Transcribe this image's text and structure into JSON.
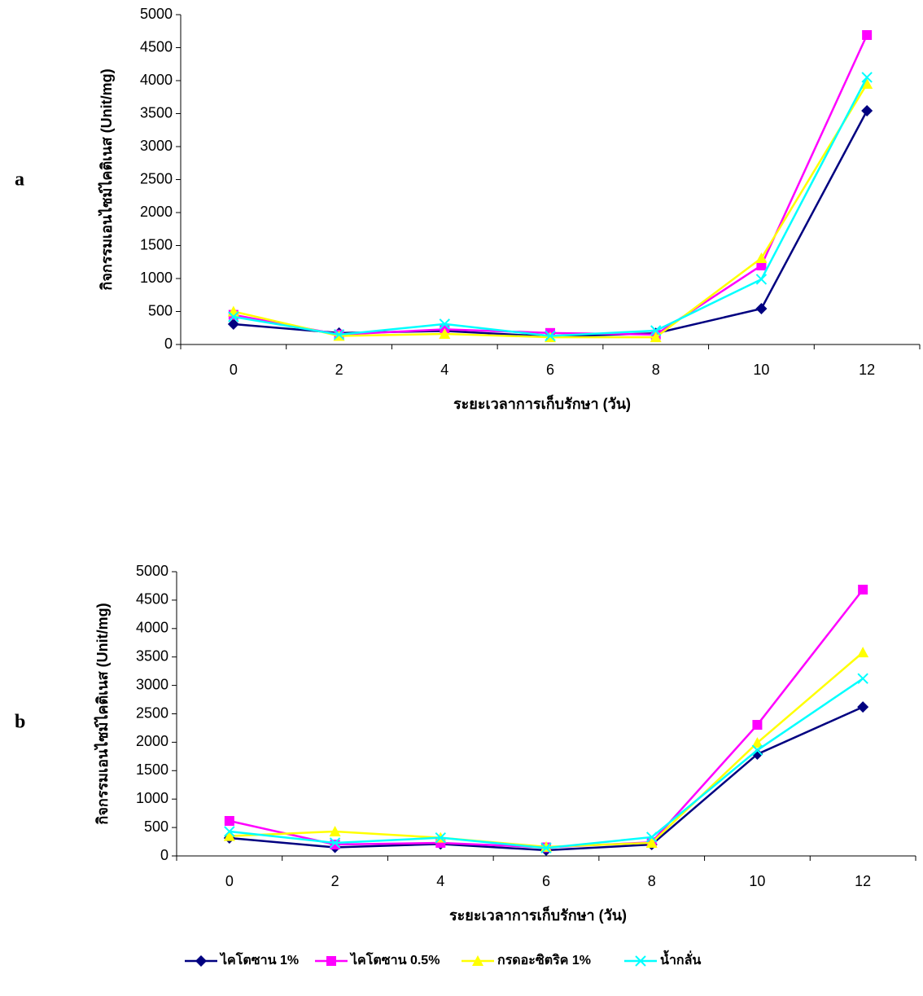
{
  "chart_data": [
    {
      "type": "line",
      "panel_label": "a",
      "y_label": "กิจกรรมเอนไซม์ไคติเนส (Unit/mg)",
      "x_label": "ระยะเวลาการเก็บรักษา (วัน)",
      "categories": [
        "0",
        "2",
        "4",
        "6",
        "8",
        "10",
        "12"
      ],
      "ylim": [
        0,
        5000
      ],
      "yticks": [
        0,
        500,
        1000,
        1500,
        2000,
        2500,
        3000,
        3500,
        4000,
        4500,
        5000
      ],
      "legend": "bottom",
      "series": [
        {
          "name": "ไคโตซาน 1%",
          "color": "#000080",
          "marker": "diamond",
          "values": [
            308,
            175,
            205,
            120,
            170,
            543,
            3543
          ]
        },
        {
          "name": "ไคโตซาน 0.5%",
          "color": "#ff00ff",
          "marker": "square",
          "values": [
            450,
            150,
            230,
            175,
            150,
            1198,
            4691
          ]
        },
        {
          "name": "กรดอะซิตริค 1%",
          "color": "#ffff00",
          "marker": "triangle",
          "values": [
            500,
            130,
            160,
            110,
            110,
            1309,
            3950
          ]
        },
        {
          "name": "น้ำกลั่น",
          "color": "#00ffff",
          "marker": "x",
          "values": [
            420,
            150,
            310,
            130,
            210,
            988,
            4050
          ]
        }
      ]
    },
    {
      "type": "line",
      "panel_label": "b",
      "y_label": "กิจกรรมเอนไซม์ไคติเนส (Unit/mg)",
      "x_label": "ระยะเวลาการเก็บรักษา (วัน)",
      "categories": [
        "0",
        "2",
        "4",
        "6",
        "8",
        "10",
        "12"
      ],
      "ylim": [
        0,
        5000
      ],
      "yticks": [
        0,
        500,
        1000,
        1500,
        2000,
        2500,
        3000,
        3500,
        4000,
        4500,
        5000
      ],
      "series": [
        {
          "color": "#000080",
          "marker": "diamond",
          "values": [
            315,
            150,
            210,
            100,
            200,
            1790,
            2620
          ]
        },
        {
          "color": "#ff00ff",
          "marker": "square",
          "values": [
            616,
            200,
            230,
            150,
            240,
            2306,
            4685
          ]
        },
        {
          "color": "#ffff00",
          "marker": "triangle",
          "values": [
            350,
            430,
            320,
            160,
            230,
            1990,
            3580
          ]
        },
        {
          "color": "#00ffff",
          "marker": "x",
          "values": [
            430,
            230,
            320,
            140,
            330,
            1860,
            3120
          ]
        }
      ]
    }
  ]
}
